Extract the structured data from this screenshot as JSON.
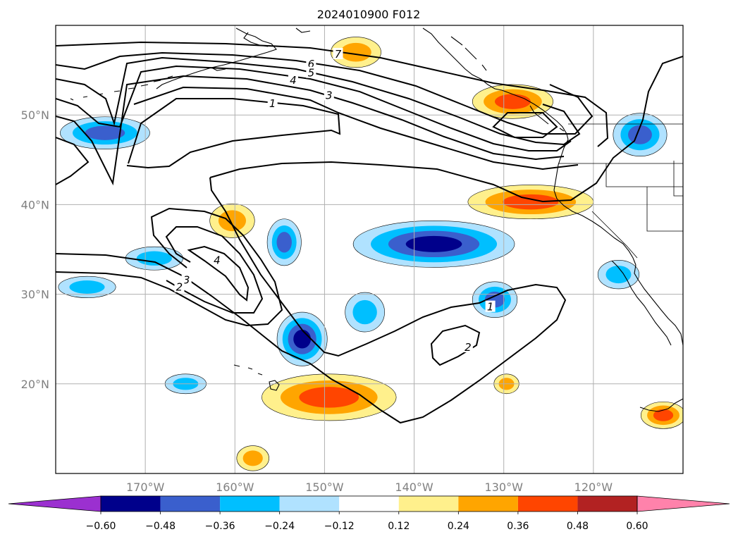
{
  "title": "2024010900 F012",
  "map": {
    "lon_range": [
      -180,
      -110
    ],
    "lat_range": [
      10,
      60
    ],
    "projection": "cylindrical",
    "lon_ticks": [
      -170,
      -160,
      -150,
      -140,
      -130,
      -120
    ],
    "lon_tick_labels": [
      "170°W",
      "160°W",
      "150°W",
      "140°W",
      "130°W",
      "120°W"
    ],
    "lat_ticks": [
      20,
      30,
      40,
      50
    ],
    "lat_tick_labels": [
      "20°N",
      "30°N",
      "40°N",
      "50°N"
    ],
    "grid": true,
    "coastlines": true,
    "state_borders": true
  },
  "contour_lines": {
    "color": "#000000",
    "labels": [
      "1",
      "2",
      "3",
      "4",
      "5",
      "6",
      "7"
    ]
  },
  "contour_label_marks": [
    {
      "text": "7",
      "lon": -148.5,
      "lat": 56.7
    },
    {
      "text": "6",
      "lon": -151.5,
      "lat": 55.6
    },
    {
      "text": "5",
      "lon": -151.5,
      "lat": 54.6
    },
    {
      "text": "4",
      "lon": -153.5,
      "lat": 53.8
    },
    {
      "text": "3",
      "lon": -149.5,
      "lat": 52.1
    },
    {
      "text": "1",
      "lon": -155.8,
      "lat": 51.2
    },
    {
      "text": "4",
      "lon": -162,
      "lat": 33.7
    },
    {
      "text": "3",
      "lon": -165.4,
      "lat": 31.5
    },
    {
      "text": "2",
      "lon": -166.2,
      "lat": 30.7
    },
    {
      "text": "1",
      "lon": -131.5,
      "lat": 28.5
    },
    {
      "text": "2",
      "lon": -134,
      "lat": 24
    }
  ],
  "colorbar": {
    "levels": [
      "-0.60",
      "-0.48",
      "-0.36",
      "-0.24",
      "-0.12",
      "0.12",
      "0.24",
      "0.36",
      "0.48",
      "0.60"
    ],
    "colors": [
      "#9b30d0",
      "#00008b",
      "#3a5fcd",
      "#00bfff",
      "#b0e2ff",
      "#ffffff",
      "#fff08c",
      "#ffa500",
      "#ff4500",
      "#b22222",
      "#ff82ab"
    ],
    "extend": "both"
  },
  "shaded_regions": [
    {
      "name": "gulf-alaska-positive",
      "levels": [
        0.12,
        0.24
      ],
      "lon": -146.5,
      "lat": 57.0,
      "rlon": 2.8,
      "rlat": 1.7
    },
    {
      "name": "bc-coast-positive",
      "levels": [
        0.12,
        0.24,
        0.36
      ],
      "lon": -129.0,
      "lat": 51.5,
      "rlon": 4.5,
      "rlat": 1.9
    },
    {
      "name": "west-pacific-negative-north",
      "levels": [
        -0.12,
        -0.24,
        -0.36
      ],
      "lon": -174.5,
      "lat": 48.0,
      "rlon": 5.0,
      "rlat": 1.8
    },
    {
      "name": "washington-negative",
      "levels": [
        -0.12,
        -0.24,
        -0.36
      ],
      "lon": -114.8,
      "lat": 47.8,
      "rlon": 3.0,
      "rlat": 2.4
    },
    {
      "name": "california-positive",
      "levels": [
        0.12,
        0.24,
        0.36
      ],
      "lon": -127.0,
      "lat": 40.3,
      "rlon": 7.0,
      "rlat": 1.9
    },
    {
      "name": "central-pacific-positive",
      "levels": [
        0.12,
        0.24
      ],
      "lon": -160.3,
      "lat": 38.2,
      "rlon": 2.5,
      "rlat": 1.9
    },
    {
      "name": "central-pacific-negative-a",
      "levels": [
        -0.12,
        -0.24,
        -0.36
      ],
      "lon": -154.5,
      "lat": 35.8,
      "rlon": 1.9,
      "rlat": 2.6
    },
    {
      "name": "central-pacific-negative-b",
      "levels": [
        -0.12,
        -0.24,
        -0.36,
        -0.48
      ],
      "lon": -137.8,
      "lat": 35.6,
      "rlon": 9.0,
      "rlat": 2.6
    },
    {
      "name": "subtropic-negative-west",
      "levels": [
        -0.12,
        -0.24
      ],
      "lon": -176.5,
      "lat": 30.8,
      "rlon": 3.2,
      "rlat": 1.2
    },
    {
      "name": "subtropic-negative-mid",
      "levels": [
        -0.12,
        -0.24
      ],
      "lon": -169.0,
      "lat": 34.0,
      "rlon": 3.2,
      "rlat": 1.3
    },
    {
      "name": "subtropic-negative-small",
      "levels": [
        -0.12,
        -0.24
      ],
      "lon": -145.5,
      "lat": 28.0,
      "rlon": 2.2,
      "rlat": 2.2
    },
    {
      "name": "hawaii-north-negative",
      "levels": [
        -0.12,
        -0.24,
        -0.36,
        -0.48
      ],
      "lon": -152.5,
      "lat": 25.0,
      "rlon": 2.8,
      "rlat": 3.0
    },
    {
      "name": "central-negative-east",
      "levels": [
        -0.12,
        -0.24,
        -0.36
      ],
      "lon": -131.0,
      "lat": 29.4,
      "rlon": 2.5,
      "rlat": 2.0
    },
    {
      "name": "baja-negative",
      "levels": [
        -0.12,
        -0.24
      ],
      "lon": -117.2,
      "lat": 32.2,
      "rlon": 2.3,
      "rlat": 1.6
    },
    {
      "name": "west-tropic-negative",
      "levels": [
        -0.12,
        -0.24
      ],
      "lon": -165.5,
      "lat": 20.0,
      "rlon": 2.3,
      "rlat": 1.1
    },
    {
      "name": "hawaii-positive",
      "levels": [
        0.12,
        0.24,
        0.36
      ],
      "lon": -149.5,
      "lat": 18.5,
      "rlon": 7.5,
      "rlat": 2.6
    },
    {
      "name": "tropic-positive-small",
      "levels": [
        0.12,
        0.24
      ],
      "lon": -129.7,
      "lat": 20.0,
      "rlon": 1.4,
      "rlat": 1.1
    },
    {
      "name": "southwest-positive",
      "levels": [
        0.12,
        0.24
      ],
      "lon": -158.0,
      "lat": 11.7,
      "rlon": 1.8,
      "rlat": 1.4
    },
    {
      "name": "mexico-positive",
      "levels": [
        0.12,
        0.24,
        0.36
      ],
      "lon": -112.2,
      "lat": 16.5,
      "rlon": 2.5,
      "rlat": 1.5
    }
  ]
}
